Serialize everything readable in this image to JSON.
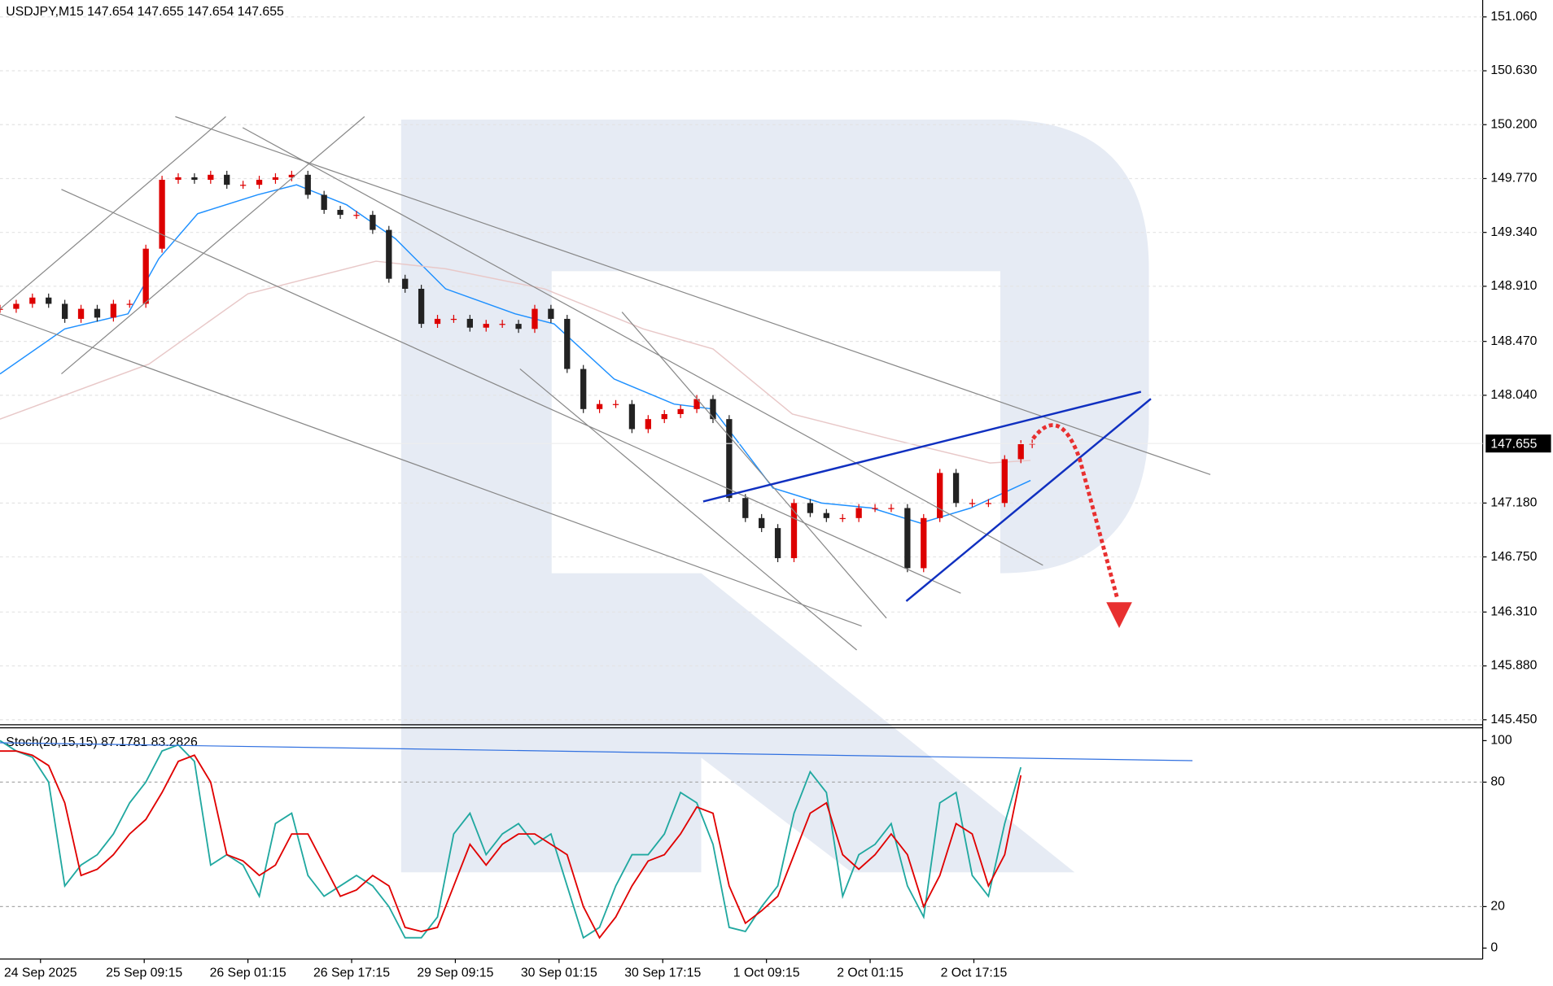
{
  "chart_data": [
    {
      "type": "candlestick",
      "title": "USDJPY,M15  147.654 147.655 147.654 147.655",
      "x": [
        0,
        10,
        20,
        30,
        40,
        50,
        60,
        70,
        80,
        90,
        100,
        110,
        120,
        130,
        140,
        150,
        160,
        170,
        180,
        190,
        200,
        210,
        220,
        230,
        240,
        250,
        260,
        270,
        280,
        290,
        300,
        310,
        320,
        330,
        340,
        350,
        360,
        370,
        380,
        390,
        400,
        410,
        420,
        430,
        440,
        450,
        460,
        470,
        480,
        490,
        500,
        510,
        520,
        530,
        540,
        550,
        560,
        570,
        580,
        590,
        600,
        610,
        620,
        630,
        637
      ],
      "values": [
        148.73,
        148.77,
        148.82,
        148.77,
        148.65,
        148.73,
        148.66,
        148.77,
        148.77,
        149.21,
        149.76,
        149.78,
        149.76,
        149.8,
        149.72,
        149.72,
        149.76,
        149.78,
        149.8,
        149.64,
        149.52,
        149.48,
        149.48,
        149.36,
        148.97,
        148.89,
        148.61,
        148.65,
        148.65,
        148.58,
        148.61,
        148.61,
        148.57,
        148.73,
        148.65,
        148.25,
        147.93,
        147.97,
        147.97,
        147.77,
        147.85,
        147.89,
        147.93,
        148.01,
        147.85,
        147.22,
        147.06,
        146.98,
        146.74,
        147.18,
        147.1,
        147.06,
        147.06,
        147.14,
        147.14,
        147.14,
        146.66,
        147.06,
        147.42,
        147.18,
        147.18,
        147.18,
        147.53,
        147.65,
        147.655
      ],
      "up_color": "#dd0000",
      "down_color": "#222222",
      "ma": [
        {
          "color": "#1e90ff",
          "x": [
            0,
            40,
            79,
            98,
            122,
            159,
            183,
            214,
            244,
            275,
            318,
            342,
            379,
            416,
            440,
            477,
            507,
            538,
            568,
            599,
            636
          ],
          "values": [
            148.21,
            148.57,
            148.69,
            149.13,
            149.49,
            149.64,
            149.72,
            149.56,
            149.29,
            148.89,
            148.69,
            148.61,
            148.17,
            147.97,
            147.93,
            147.3,
            147.18,
            147.14,
            147.02,
            147.14,
            147.36
          ]
        },
        {
          "color": "#e8c8c8",
          "x": [
            0,
            92,
            153,
            232,
            275,
            336,
            397,
            440,
            489,
            550,
            611,
            636
          ],
          "values": [
            147.85,
            148.29,
            148.85,
            149.11,
            149.05,
            148.89,
            148.57,
            148.41,
            147.89,
            147.69,
            147.5,
            147.52
          ]
        }
      ],
      "last_price": 147.655,
      "xlim": [
        0,
        915
      ],
      "ylim": [
        145.41,
        151.195
      ],
      "yticks": [
        {
          "value": 151.06,
          "label": "151.060"
        },
        {
          "value": 150.63,
          "label": "150.630"
        },
        {
          "value": 150.2,
          "label": "150.200"
        },
        {
          "value": 149.77,
          "label": "149.770"
        },
        {
          "value": 149.34,
          "label": "149.340"
        },
        {
          "value": 148.91,
          "label": "148.910"
        },
        {
          "value": 148.47,
          "label": "148.470"
        },
        {
          "value": 148.04,
          "label": "148.040"
        },
        {
          "value": 147.18,
          "label": "147.180"
        },
        {
          "value": 146.75,
          "label": "146.750"
        },
        {
          "value": 146.31,
          "label": "146.310"
        },
        {
          "value": 145.88,
          "label": "145.880"
        },
        {
          "value": 145.45,
          "label": "145.450"
        }
      ],
      "xticks": [
        {
          "value": 25,
          "label": "24 Sep 2025"
        },
        {
          "value": 89,
          "label": "25 Sep 09:15"
        },
        {
          "value": 153,
          "label": "26 Sep 01:15"
        },
        {
          "value": 217,
          "label": "26 Sep 17:15"
        },
        {
          "value": 281,
          "label": "29 Sep 09:15"
        },
        {
          "value": 345,
          "label": "30 Sep 01:15"
        },
        {
          "value": 409,
          "label": "30 Sep 17:15"
        },
        {
          "value": 473,
          "label": "1 Oct 09:15"
        },
        {
          "value": 537,
          "label": "2 Oct 01:15"
        },
        {
          "value": 601,
          "label": "2 Oct 17:15"
        }
      ],
      "grid": true
    },
    {
      "type": "line",
      "title": "Stoch(20,15,15) 87.1781 83.2826",
      "x": [
        0,
        10,
        20,
        30,
        40,
        50,
        60,
        70,
        80,
        90,
        100,
        110,
        120,
        130,
        140,
        150,
        160,
        170,
        180,
        190,
        200,
        210,
        220,
        230,
        240,
        250,
        260,
        270,
        280,
        290,
        300,
        310,
        320,
        330,
        340,
        350,
        360,
        370,
        380,
        390,
        400,
        410,
        420,
        430,
        440,
        450,
        460,
        470,
        480,
        490,
        500,
        510,
        520,
        530,
        540,
        550,
        560,
        570,
        580,
        590,
        600,
        610,
        620,
        630
      ],
      "series": [
        {
          "color": "#20a8a0",
          "values": [
            100,
            95,
            92,
            80,
            30,
            40,
            45,
            55,
            70,
            80,
            95,
            98,
            90,
            40,
            45,
            40,
            25,
            60,
            65,
            35,
            25,
            30,
            35,
            30,
            20,
            5,
            5,
            15,
            55,
            65,
            45,
            55,
            60,
            50,
            55,
            30,
            5,
            10,
            30,
            45,
            45,
            55,
            75,
            70,
            50,
            10,
            8,
            20,
            30,
            65,
            85,
            75,
            25,
            45,
            50,
            60,
            30,
            15,
            70,
            75,
            35,
            25,
            60,
            87.18
          ]
        },
        {
          "color": "#e00000",
          "values": [
            95,
            95,
            93,
            88,
            70,
            35,
            38,
            45,
            55,
            62,
            75,
            90,
            93,
            80,
            45,
            42,
            35,
            40,
            55,
            55,
            40,
            25,
            28,
            35,
            30,
            10,
            8,
            10,
            30,
            50,
            40,
            50,
            55,
            55,
            50,
            45,
            20,
            5,
            15,
            30,
            42,
            45,
            55,
            68,
            65,
            30,
            12,
            18,
            25,
            45,
            65,
            70,
            45,
            38,
            45,
            55,
            45,
            20,
            35,
            60,
            55,
            30,
            45,
            83.28
          ]
        }
      ],
      "xlim": [
        0,
        915
      ],
      "ylim": [
        -5.3,
        106.2
      ],
      "yticks": [
        100,
        80,
        20,
        0
      ],
      "levels": [
        80,
        20
      ]
    }
  ]
}
